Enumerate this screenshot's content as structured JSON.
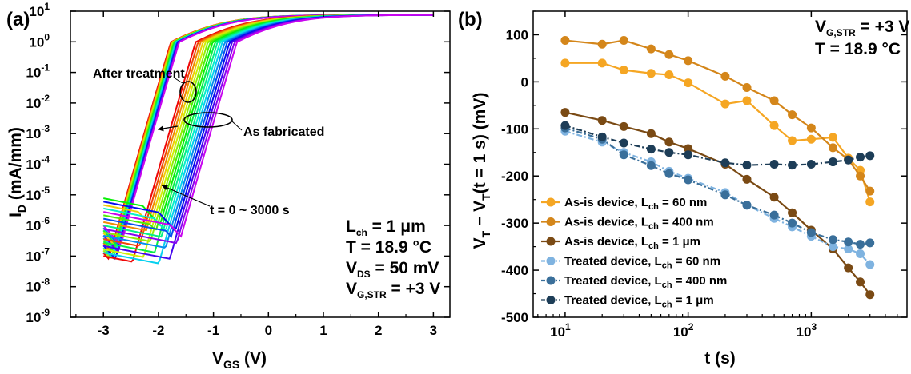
{
  "chart_data": [
    {
      "panel": "(a)",
      "type": "line",
      "xlabel": "V",
      "xlabel_sub": "GS",
      "xlabel_unit": "(V)",
      "ylabel": "I",
      "ylabel_sub": "D",
      "ylabel_unit": "(mA/mm)",
      "xlim": [
        -3.6,
        3.3
      ],
      "ylim_log10": [
        -9,
        1
      ],
      "yscale": "log",
      "x_ticks": [
        -3,
        -2,
        -1,
        0,
        1,
        2,
        3
      ],
      "y_ticks_exp": [
        -9,
        -8,
        -7,
        -6,
        -5,
        -4,
        -3,
        -2,
        -1,
        0,
        1
      ],
      "annotations": {
        "after_treatment": "After treatment",
        "as_fabricated": "As fabricated",
        "time_range": "t = 0 ~ 3000 s"
      },
      "conditions": [
        {
          "main": "L",
          "sub": "ch",
          "rest": " = 1 μm"
        },
        {
          "main": "T = 18.9 °C",
          "sub": "",
          "rest": ""
        },
        {
          "main": "V",
          "sub": "DS",
          "rest": " = 50 mV"
        },
        {
          "main": "V",
          "sub": "G,STR",
          "rest": " = +3 V"
        }
      ],
      "groups": [
        {
          "name": "After treatment",
          "vt_range": [
            -2.2,
            -2.05
          ],
          "leak_range": [
            3e-07,
            0.0003
          ]
        },
        {
          "name": "As fabricated",
          "vt_range": [
            -1.75,
            -1.0
          ],
          "leak_range": [
            1e-07,
            1e-05
          ]
        }
      ]
    },
    {
      "panel": "(b)",
      "type": "line",
      "xlabel": "t (s)",
      "ylabel": "V",
      "ylabel_sub1": "T",
      "ylabel_mid": " − V",
      "ylabel_sub2": "T",
      "ylabel_tail": "(t = 1 s) (mV)",
      "xscale": "log",
      "xlim": [
        5.5,
        6000
      ],
      "ylim": [
        -500,
        150
      ],
      "y_ticks": [
        -500,
        -400,
        -300,
        -200,
        -100,
        0,
        100
      ],
      "x_ticks_exp": [
        1,
        2,
        3
      ],
      "conditions": [
        {
          "main": "V",
          "sub": "G,STR",
          "rest": " = +3 V"
        },
        {
          "main": "T = 18.9 °C",
          "sub": "",
          "rest": ""
        }
      ],
      "x": [
        10,
        20,
        30,
        50,
        70,
        100,
        200,
        300,
        500,
        700,
        1000,
        1500,
        2000,
        2500,
        3000
      ],
      "series": [
        {
          "name": "As-is device, L",
          "sub": "ch",
          "tail": " = 60 nm",
          "color": "#f5a623",
          "values": [
            40,
            40,
            25,
            18,
            15,
            -2,
            -47,
            -40,
            -93,
            -125,
            -122,
            -118,
            -162,
            -188,
            -255
          ]
        },
        {
          "name": "As-is device, L",
          "sub": "ch",
          "tail": " = 400 nm",
          "color": "#d4861a",
          "values": [
            88,
            80,
            88,
            70,
            58,
            45,
            12,
            -12,
            -40,
            -70,
            -98,
            -140,
            -165,
            -200,
            -232
          ]
        },
        {
          "name": "As-is device, L",
          "sub": "ch",
          "tail": " = 1 μm",
          "color": "#7a4a14",
          "values": [
            -65,
            -82,
            -95,
            -110,
            -128,
            -142,
            -175,
            -207,
            -245,
            -278,
            -315,
            -355,
            -395,
            -425,
            -452
          ]
        },
        {
          "name": "Treated device, L",
          "sub": "ch",
          "tail": " = 60 nm",
          "color": "#7fb3e0",
          "values": [
            -105,
            -128,
            -150,
            -170,
            -190,
            -205,
            -235,
            -262,
            -290,
            -308,
            -328,
            -350,
            -355,
            -365,
            -388
          ]
        },
        {
          "name": "Treated device, L",
          "sub": "ch",
          "tail": " = 400 nm",
          "color": "#3a6f9a",
          "values": [
            -98,
            -122,
            -155,
            -178,
            -195,
            -208,
            -240,
            -262,
            -283,
            -300,
            -320,
            -335,
            -340,
            -345,
            -342
          ]
        },
        {
          "name": "Treated device, L",
          "sub": "ch",
          "tail": " = 1 μm",
          "color": "#1d3d57",
          "values": [
            -93,
            -117,
            -130,
            -143,
            -150,
            -155,
            -172,
            -177,
            -175,
            -177,
            -175,
            -170,
            -166,
            -160,
            -157
          ]
        }
      ]
    }
  ]
}
